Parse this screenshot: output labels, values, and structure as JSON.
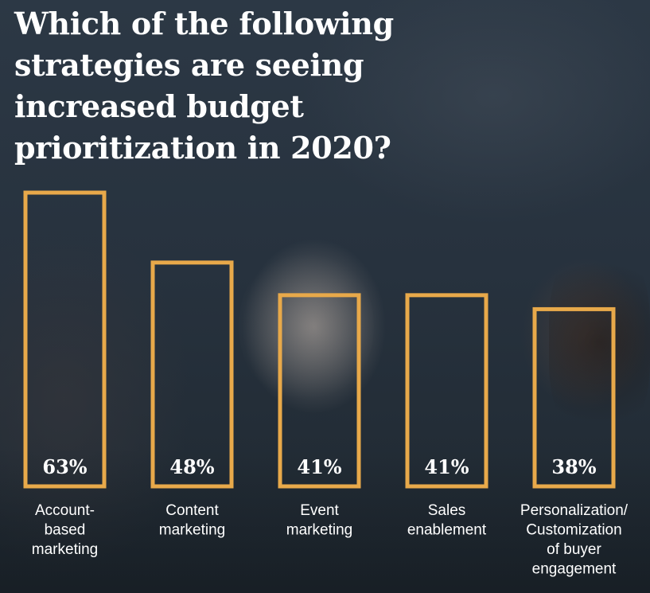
{
  "chart_data": {
    "type": "bar",
    "title": "Which of the following strategies are seeing increased budget prioritization in 2020?",
    "categories": [
      [
        "Account-",
        "based",
        "marketing"
      ],
      [
        "Content",
        "marketing"
      ],
      [
        "Event",
        "marketing"
      ],
      [
        "Sales",
        "enablement"
      ],
      [
        "Personalization/",
        "Customization",
        "of buyer",
        "engagement"
      ]
    ],
    "values": [
      63,
      48,
      41,
      41,
      38
    ],
    "value_labels": [
      "63%",
      "48%",
      "41%",
      "41%",
      "38%"
    ],
    "ylim": [
      0,
      63
    ],
    "grid": false,
    "bar_style": "outlined",
    "colors": {
      "bar_outline": "#e8a94a",
      "text": "#ffffff",
      "background": "#27323e"
    }
  }
}
